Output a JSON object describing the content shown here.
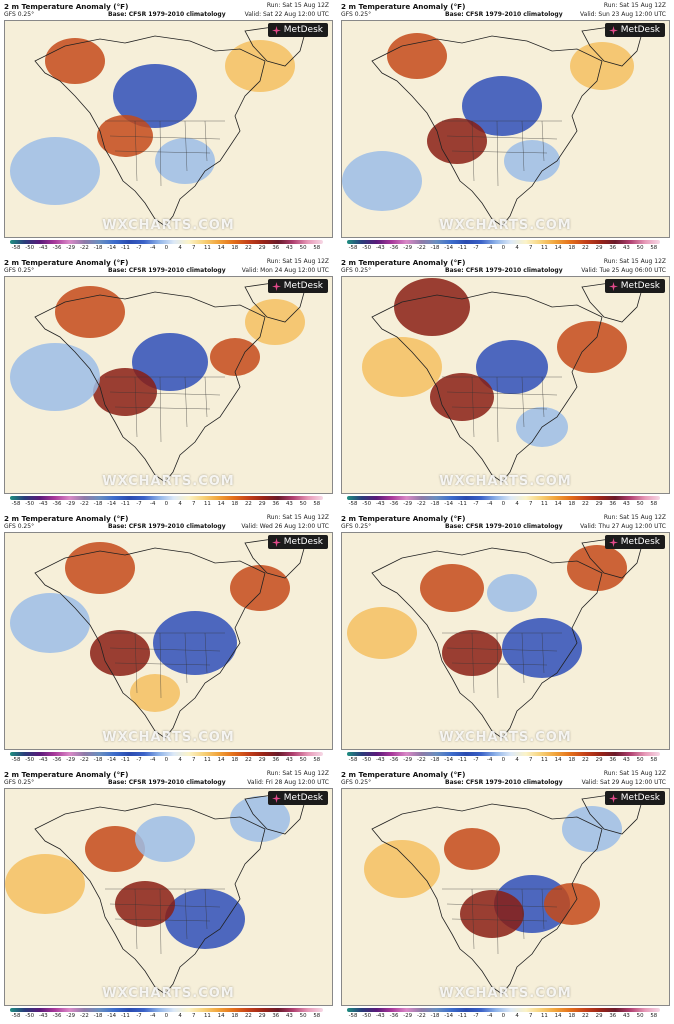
{
  "panels": [
    {
      "title": "2 m Temperature Anomaly (°F)",
      "model": "GFS 0.25°",
      "base": "Base: CFSR 1979-2010 climatology",
      "run": "Run: Sat 15 Aug 12Z",
      "valid": "Valid: Sat 22 Aug 12:00 UTC"
    },
    {
      "title": "2 m Temperature Anomaly (°F)",
      "model": "GFS 0.25°",
      "base": "Base: CFSR 1979-2010 climatology",
      "run": "Run: Sat 15 Aug 12Z",
      "valid": "Valid: Sun 23 Aug 12:00 UTC"
    },
    {
      "title": "2 m Temperature Anomaly (°F)",
      "model": "GFS 0.25°",
      "base": "Base: CFSR 1979-2010 climatology",
      "run": "Run: Sat 15 Aug 12Z",
      "valid": "Valid: Mon 24 Aug 12:00 UTC"
    },
    {
      "title": "2 m Temperature Anomaly (°F)",
      "model": "GFS 0.25°",
      "base": "Base: CFSR 1979-2010 climatology",
      "run": "Run: Sat 15 Aug 12Z",
      "valid": "Valid: Tue 25 Aug 06:00 UTC"
    },
    {
      "title": "2 m Temperature Anomaly (°F)",
      "model": "GFS 0.25°",
      "base": "Base: CFSR 1979-2010 climatology",
      "run": "Run: Sat 15 Aug 12Z",
      "valid": "Valid: Wed 26 Aug 12:00 UTC"
    },
    {
      "title": "2 m Temperature Anomaly (°F)",
      "model": "GFS 0.25°",
      "base": "Base: CFSR 1979-2010 climatology",
      "run": "Run: Sat 15 Aug 12Z",
      "valid": "Valid: Thu 27 Aug 12:00 UTC"
    },
    {
      "title": "2 m Temperature Anomaly (°F)",
      "model": "GFS 0.25°",
      "base": "Base: CFSR 1979-2010 climatology",
      "run": "Run: Sat 15 Aug 12Z",
      "valid": "Valid: Fri 28 Aug 12:00 UTC"
    },
    {
      "title": "2 m Temperature Anomaly (°F)",
      "model": "GFS 0.25°",
      "base": "Base: CFSR 1979-2010 climatology",
      "run": "Run: Sat 15 Aug 12Z",
      "valid": "Valid: Sat 29 Aug 12:00 UTC"
    }
  ],
  "brand": "MetDesk",
  "watermark": "WXCHARTS.COM",
  "scale_ticks": [
    "-58",
    "-50",
    "-43",
    "-36",
    "-29",
    "-22",
    "-18",
    "-14",
    "-11",
    "-7",
    "-4",
    "0",
    "4",
    "7",
    "11",
    "14",
    "18",
    "22",
    "29",
    "36",
    "43",
    "50",
    "58"
  ],
  "colors": {
    "warm": "#c44a1a",
    "hot": "#8a1e14",
    "mild": "#f4c060",
    "cool": "#9cbde6",
    "cold": "#2f4fb8",
    "ocean_neutral": "#f6f0dc"
  }
}
